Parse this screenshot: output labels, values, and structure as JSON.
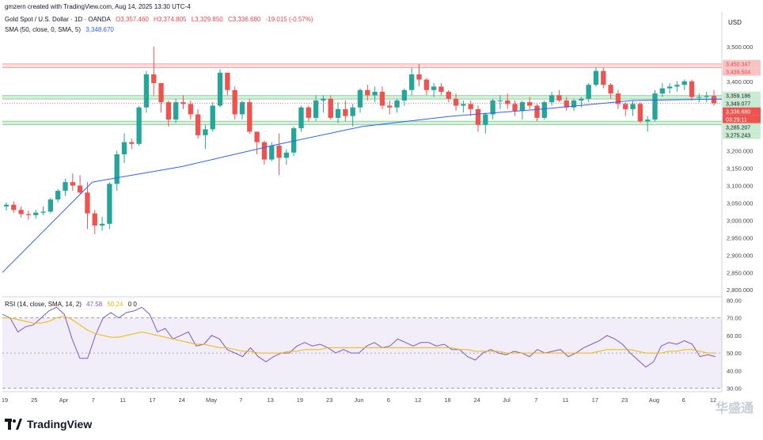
{
  "header": {
    "created": "gmzern created with TradingView.com, Aug 14, 2025 13:30 UTC-4",
    "symbol": "Gold Spot / U.S. Dollar · 1D · OANDA",
    "ohlc": [
      "O3,357.460",
      "H3,374.805",
      "L3,329.850",
      "C3,336.680",
      "-19.015 (-0.57%)"
    ],
    "sma_label": "SMA (50, close, 0, SMA, 5)",
    "sma_value": "3,348.670",
    "rsi_label": "RSI (14, close, SMA, 14, 2)",
    "rsi_value": "47.58",
    "rsi_ma_value": "50.24",
    "rsi_extra": "0 0"
  },
  "footer": {
    "brand": "TradingView",
    "watermark": "华盛通"
  },
  "colors": {
    "up": "#26a69a",
    "down": "#ef5350",
    "sma": "#2962ff",
    "rsi": "#7e57c2",
    "rsi_ma": "#f2b600",
    "resistance": "#f7a5a5",
    "support": "#8fd19e"
  },
  "chart_data": [
    {
      "type": "candlestick",
      "title": "Gold Spot / U.S. Dollar · 1D · OANDA",
      "currency": "USD",
      "ylim": [
        2780,
        3600
      ],
      "y_ticks": [
        "2,800.000",
        "2,850.000",
        "2,900.000",
        "2,950.000",
        "3,000.000",
        "3,050.000",
        "3,100.000",
        "3,150.000",
        "3,200.000",
        "3,250.000",
        "3,300.000",
        "3,350.000",
        "3,400.000",
        "3,450.000",
        "3,500.000"
      ],
      "x_ticks": [
        "19",
        "25",
        "Apr",
        "7",
        "11",
        "17",
        "24",
        "May",
        "7",
        "13",
        "19",
        "23",
        "Jun",
        "6",
        "12",
        "18",
        "24",
        "Jul",
        "7",
        "11",
        "17",
        "23",
        "Aug",
        "6",
        "12"
      ],
      "zones": [
        {
          "kind": "resistance",
          "from": 3439.504,
          "to": 3450.347
        },
        {
          "kind": "support",
          "from": 3349.077,
          "to": 3359.186
        },
        {
          "kind": "support",
          "from": 3275.243,
          "to": 3285.207
        }
      ],
      "price_labels": [
        "3,450.347",
        "3,439.504",
        "3,359.186",
        "3,349.077",
        "3,336.680",
        "03:29:11",
        "3,285.207",
        "3,275.243"
      ],
      "candles": [
        [
          3040,
          3052,
          3028,
          3045
        ],
        [
          3045,
          3055,
          3022,
          3030
        ],
        [
          3030,
          3040,
          3008,
          3018
        ],
        [
          3018,
          3028,
          3002,
          3015
        ],
        [
          3015,
          3030,
          3005,
          3022
        ],
        [
          3022,
          3040,
          3015,
          3025
        ],
        [
          3025,
          3065,
          3020,
          3060
        ],
        [
          3060,
          3090,
          3052,
          3085
        ],
        [
          3085,
          3120,
          3070,
          3110
        ],
        [
          3110,
          3135,
          3085,
          3100
        ],
        [
          3100,
          3130,
          3075,
          3080
        ],
        [
          3080,
          3110,
          2975,
          3020
        ],
        [
          3020,
          3030,
          2960,
          2985
        ],
        [
          2985,
          3010,
          2970,
          2990
        ],
        [
          2990,
          3110,
          2975,
          3105
        ],
        [
          3105,
          3200,
          3085,
          3190
        ],
        [
          3190,
          3250,
          3165,
          3225
        ],
        [
          3225,
          3235,
          3205,
          3220
        ],
        [
          3220,
          3330,
          3215,
          3325
        ],
        [
          3325,
          3430,
          3310,
          3420
        ],
        [
          3420,
          3500,
          3360,
          3395
        ],
        [
          3395,
          3390,
          3310,
          3340
        ],
        [
          3340,
          3345,
          3270,
          3290
        ],
        [
          3290,
          3350,
          3280,
          3340
        ],
        [
          3340,
          3360,
          3320,
          3335
        ],
        [
          3335,
          3345,
          3290,
          3305
        ],
        [
          3305,
          3320,
          3235,
          3245
        ],
        [
          3245,
          3275,
          3205,
          3262
        ],
        [
          3262,
          3340,
          3255,
          3330
        ],
        [
          3330,
          3435,
          3325,
          3425
        ],
        [
          3425,
          3420,
          3360,
          3375
        ],
        [
          3375,
          3385,
          3290,
          3305
        ],
        [
          3305,
          3345,
          3290,
          3340
        ],
        [
          3340,
          3350,
          3250,
          3255
        ],
        [
          3255,
          3255,
          3190,
          3225
        ],
        [
          3225,
          3230,
          3160,
          3175
        ],
        [
          3175,
          3225,
          3170,
          3215
        ],
        [
          3215,
          3250,
          3130,
          3180
        ],
        [
          3180,
          3205,
          3160,
          3195
        ],
        [
          3195,
          3270,
          3185,
          3265
        ],
        [
          3265,
          3330,
          3255,
          3325
        ],
        [
          3325,
          3330,
          3285,
          3295
        ],
        [
          3295,
          3360,
          3285,
          3345
        ],
        [
          3345,
          3360,
          3310,
          3350
        ],
        [
          3350,
          3360,
          3290,
          3295
        ],
        [
          3295,
          3340,
          3280,
          3320
        ],
        [
          3320,
          3345,
          3285,
          3300
        ],
        [
          3300,
          3335,
          3270,
          3325
        ],
        [
          3325,
          3380,
          3310,
          3375
        ],
        [
          3375,
          3390,
          3345,
          3360
        ],
        [
          3360,
          3385,
          3340,
          3370
        ],
        [
          3370,
          3385,
          3320,
          3330
        ],
        [
          3330,
          3345,
          3305,
          3325
        ],
        [
          3325,
          3350,
          3310,
          3345
        ],
        [
          3345,
          3380,
          3330,
          3375
        ],
        [
          3375,
          3440,
          3360,
          3420
        ],
        [
          3420,
          3450,
          3385,
          3405
        ],
        [
          3405,
          3410,
          3360,
          3375
        ],
        [
          3375,
          3395,
          3355,
          3385
        ],
        [
          3385,
          3395,
          3360,
          3370
        ],
        [
          3370,
          3375,
          3340,
          3350
        ],
        [
          3350,
          3365,
          3315,
          3330
        ],
        [
          3330,
          3345,
          3310,
          3335
        ],
        [
          3335,
          3345,
          3300,
          3320
        ],
        [
          3320,
          3330,
          3255,
          3275
        ],
        [
          3275,
          3310,
          3250,
          3305
        ],
        [
          3305,
          3350,
          3290,
          3345
        ],
        [
          3345,
          3360,
          3320,
          3345
        ],
        [
          3345,
          3365,
          3320,
          3335
        ],
        [
          3335,
          3345,
          3300,
          3315
        ],
        [
          3315,
          3345,
          3290,
          3340
        ],
        [
          3340,
          3355,
          3320,
          3330
        ],
        [
          3330,
          3335,
          3285,
          3295
        ],
        [
          3295,
          3345,
          3290,
          3340
        ],
        [
          3340,
          3370,
          3330,
          3360
        ],
        [
          3360,
          3375,
          3340,
          3345
        ],
        [
          3345,
          3355,
          3315,
          3325
        ],
        [
          3325,
          3350,
          3315,
          3345
        ],
        [
          3345,
          3355,
          3325,
          3350
        ],
        [
          3350,
          3395,
          3340,
          3390
        ],
        [
          3390,
          3440,
          3385,
          3430
        ],
        [
          3430,
          3440,
          3380,
          3390
        ],
        [
          3390,
          3395,
          3350,
          3365
        ],
        [
          3365,
          3375,
          3320,
          3335
        ],
        [
          3335,
          3340,
          3300,
          3320
        ],
        [
          3320,
          3345,
          3300,
          3335
        ],
        [
          3335,
          3340,
          3280,
          3285
        ],
        [
          3285,
          3300,
          3255,
          3290
        ],
        [
          3290,
          3375,
          3285,
          3365
        ],
        [
          3365,
          3395,
          3355,
          3380
        ],
        [
          3380,
          3395,
          3365,
          3385
        ],
        [
          3385,
          3400,
          3370,
          3390
        ],
        [
          3390,
          3405,
          3375,
          3400
        ],
        [
          3400,
          3405,
          3345,
          3355
        ],
        [
          3355,
          3365,
          3340,
          3355
        ],
        [
          3355,
          3370,
          3340,
          3358
        ],
        [
          3358,
          3375,
          3330,
          3337
        ]
      ],
      "sma_50": [
        2850,
        3110,
        3155,
        3215,
        3270,
        3300,
        3320,
        3345,
        3349
      ]
    },
    {
      "type": "line",
      "title": "RSI (14, close, SMA, 14, 2)",
      "ylim": [
        28,
        82
      ],
      "y_ticks": [
        "30.00",
        "40.00",
        "50.00",
        "60.00",
        "70.00",
        "80.00"
      ],
      "bands": [
        70,
        50,
        30
      ],
      "series": [
        {
          "name": "RSI",
          "values": [
            72,
            70,
            62,
            65,
            66,
            70,
            74,
            76,
            72,
            58,
            47,
            47,
            60,
            70,
            73,
            70,
            73,
            74,
            76,
            72,
            62,
            64,
            58,
            60,
            62,
            54,
            55,
            60,
            58,
            52,
            50,
            48,
            53,
            48,
            45,
            48,
            50,
            50,
            54,
            56,
            54,
            55,
            53,
            50,
            52,
            50,
            50,
            54,
            56,
            53,
            54,
            58,
            56,
            54,
            56,
            56,
            54,
            55,
            52,
            52,
            48,
            46,
            50,
            52,
            50,
            49,
            51,
            50,
            48,
            52,
            50,
            51,
            52,
            48,
            50,
            53,
            55,
            57,
            60,
            58,
            55,
            50,
            46,
            42,
            45,
            54,
            56,
            55,
            57,
            55,
            48,
            49,
            48
          ]
        },
        {
          "name": "RSI MA",
          "values": [
            70,
            70,
            69,
            68,
            67,
            67,
            68,
            70,
            71,
            69,
            66,
            63,
            61,
            60,
            59,
            59,
            60,
            61,
            62,
            61,
            60,
            59,
            58,
            57,
            56,
            55,
            55,
            54,
            53,
            53,
            52,
            51,
            51,
            50,
            50,
            50,
            50,
            51,
            51,
            52,
            52,
            52,
            53,
            53,
            53,
            53,
            53,
            53,
            53,
            53,
            53,
            53,
            53,
            53,
            53,
            53,
            53,
            53,
            53,
            52,
            52,
            51,
            51,
            51,
            51,
            50,
            50,
            50,
            50,
            50,
            50,
            50,
            50,
            50,
            50,
            50,
            50,
            51,
            52,
            52,
            52,
            52,
            51,
            50,
            50,
            50,
            51,
            51,
            52,
            52,
            51,
            50,
            50
          ]
        }
      ]
    }
  ]
}
